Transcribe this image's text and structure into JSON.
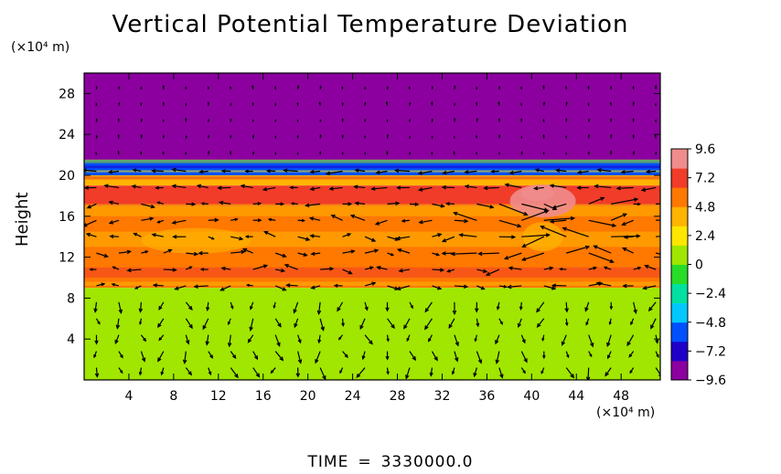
{
  "chart_data": {
    "type": "heatmap",
    "title": "Vertical Potential Temperature Deviation",
    "ylabel": "Height",
    "x_unit": "(×10⁴ m)",
    "y_unit": "(×10⁴ m)",
    "xlim": [
      0,
      51.5
    ],
    "ylim": [
      0,
      30
    ],
    "xticks": [
      4,
      8,
      12,
      16,
      20,
      24,
      28,
      32,
      36,
      40,
      44,
      48
    ],
    "yticks": [
      4,
      8,
      12,
      16,
      20,
      24,
      28
    ],
    "colorbar": {
      "range": [
        -9.6,
        9.6
      ],
      "ticks": [
        9.6,
        7.2,
        4.8,
        2.4,
        0,
        -2.4,
        -4.8,
        -7.2,
        -9.6
      ],
      "tick_labels": [
        "9.6",
        "7.2",
        "4.8",
        "2.4",
        "0",
        "−2.4",
        "−4.8",
        "−7.2",
        "−9.6"
      ],
      "colors": [
        "#8c00a0",
        "#1f00c8",
        "#0050ff",
        "#00c8ff",
        "#00e0a0",
        "#28dc28",
        "#a0e600",
        "#ffe600",
        "#ffb400",
        "#ff7800",
        "#f03c28",
        "#f08c8c"
      ]
    },
    "bands": [
      {
        "y_from": 21.5,
        "y_to": 30,
        "value": -9.6
      },
      {
        "y_from": 20.0,
        "y_to": 21.5,
        "value": -5.0
      },
      {
        "y_from": 19.0,
        "y_to": 20.0,
        "value": 4.0
      },
      {
        "y_from": 17.0,
        "y_to": 19.0,
        "value": 7.5
      },
      {
        "y_from": 9.0,
        "y_to": 17.0,
        "value": 5.5
      },
      {
        "y_from": 0,
        "y_to": 9.0,
        "value": 0.8
      }
    ],
    "has_wind_vectors": true
  },
  "time_label": "TIME",
  "time_equals": "=",
  "time_value": "3330000.0"
}
